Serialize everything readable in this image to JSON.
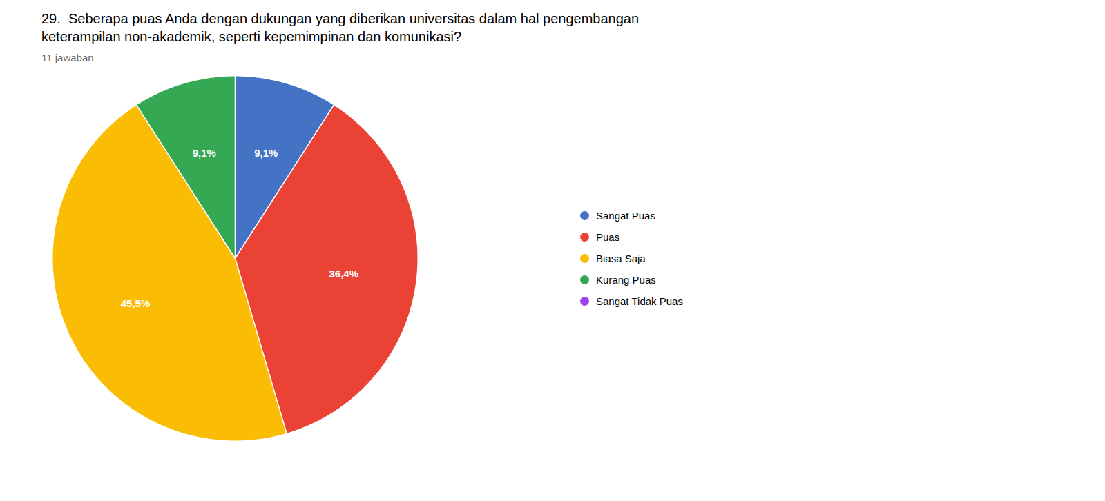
{
  "chart_data": {
    "type": "pie",
    "title": "29.  Seberapa puas Anda dengan dukungan yang diberikan universitas dalam hal pengembangan\nketerampilan non-akademik, seperti kepemimpinan dan komunikasi?",
    "subtitle": "11 jawaban",
    "categories": [
      "Sangat Puas",
      "Puas",
      "Biasa Saja",
      "Kurang Puas",
      "Sangat Tidak Puas"
    ],
    "values": [
      9.1,
      36.4,
      45.5,
      9.1,
      0.0
    ],
    "value_labels": [
      "9,1%",
      "36,4%",
      "45,5%",
      "9,1%",
      null
    ],
    "colors": [
      "#4472C4",
      "#EA4335",
      "#FBBC04",
      "#34A853",
      "#A142F4"
    ],
    "data_labels": true,
    "legend": "right"
  }
}
